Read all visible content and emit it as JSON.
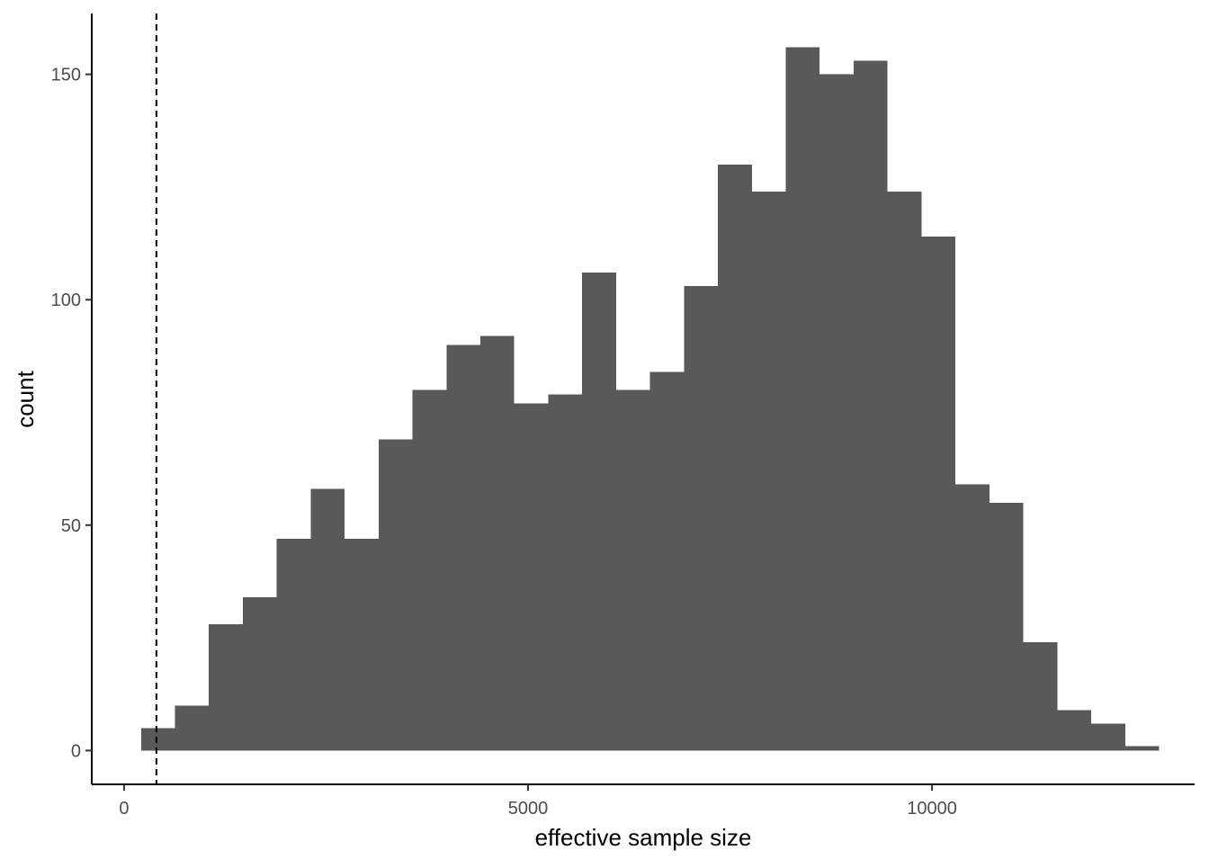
{
  "chart_data": {
    "type": "histogram",
    "title": "",
    "xlabel": "effective sample size",
    "ylabel": "count",
    "xlim": [
      -400,
      13250
    ],
    "ylim": [
      -7.5,
      163.5
    ],
    "x_ticks": [
      0,
      5000,
      10000
    ],
    "y_ticks": [
      0,
      50,
      100,
      150
    ],
    "bin_width": 420,
    "bins": [
      {
        "x0": 210,
        "x1": 630,
        "count": 5
      },
      {
        "x0": 630,
        "x1": 1050,
        "count": 10
      },
      {
        "x0": 1050,
        "x1": 1470,
        "count": 28
      },
      {
        "x0": 1470,
        "x1": 1890,
        "count": 34
      },
      {
        "x0": 1890,
        "x1": 2310,
        "count": 47
      },
      {
        "x0": 2310,
        "x1": 2730,
        "count": 58
      },
      {
        "x0": 2730,
        "x1": 3150,
        "count": 47
      },
      {
        "x0": 3150,
        "x1": 3570,
        "count": 69
      },
      {
        "x0": 3570,
        "x1": 3990,
        "count": 80
      },
      {
        "x0": 3990,
        "x1": 4410,
        "count": 90
      },
      {
        "x0": 4410,
        "x1": 4830,
        "count": 92
      },
      {
        "x0": 4830,
        "x1": 5250,
        "count": 77
      },
      {
        "x0": 5250,
        "x1": 5670,
        "count": 79
      },
      {
        "x0": 5670,
        "x1": 6090,
        "count": 106
      },
      {
        "x0": 6090,
        "x1": 6510,
        "count": 80
      },
      {
        "x0": 6510,
        "x1": 6930,
        "count": 84
      },
      {
        "x0": 6930,
        "x1": 7350,
        "count": 103
      },
      {
        "x0": 7350,
        "x1": 7770,
        "count": 130
      },
      {
        "x0": 7770,
        "x1": 8190,
        "count": 124
      },
      {
        "x0": 8190,
        "x1": 8610,
        "count": 156
      },
      {
        "x0": 8610,
        "x1": 9030,
        "count": 150
      },
      {
        "x0": 9030,
        "x1": 9450,
        "count": 153
      },
      {
        "x0": 9450,
        "x1": 9870,
        "count": 124
      },
      {
        "x0": 9870,
        "x1": 10290,
        "count": 114
      },
      {
        "x0": 10290,
        "x1": 10710,
        "count": 59
      },
      {
        "x0": 10710,
        "x1": 11130,
        "count": 55
      },
      {
        "x0": 11130,
        "x1": 11550,
        "count": 24
      },
      {
        "x0": 11550,
        "x1": 11970,
        "count": 9
      },
      {
        "x0": 11970,
        "x1": 12390,
        "count": 6
      },
      {
        "x0": 12390,
        "x1": 12810,
        "count": 1
      }
    ],
    "reference_line": {
      "x": 400,
      "style": "dashed"
    },
    "bar_color": "#595959",
    "grid": false,
    "legend": "none"
  }
}
